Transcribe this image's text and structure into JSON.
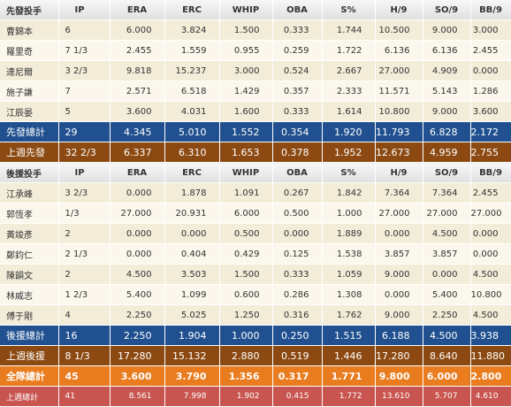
{
  "columns": [
    "IP",
    "ERA",
    "ERC",
    "WHIP",
    "OBA",
    "S%",
    "H/9",
    "SO/9",
    "BB/9"
  ],
  "sections": [
    {
      "header": "先發投手",
      "rows": [
        [
          "曹錦本",
          "6",
          "6.000",
          "3.824",
          "1.500",
          "0.333",
          "1.744",
          "10.500",
          "9.000",
          "3.000"
        ],
        [
          "羅里奇",
          "7 1/3",
          "2.455",
          "1.559",
          "0.955",
          "0.259",
          "1.722",
          "6.136",
          "6.136",
          "2.455"
        ],
        [
          "達尼爾",
          "3 2/3",
          "9.818",
          "15.237",
          "3.000",
          "0.524",
          "2.667",
          "27.000",
          "4.909",
          "0.000"
        ],
        [
          "施子謙",
          "7",
          "2.571",
          "6.518",
          "1.429",
          "0.357",
          "2.333",
          "11.571",
          "5.143",
          "1.286"
        ],
        [
          "江辰晏",
          "5",
          "3.600",
          "4.031",
          "1.600",
          "0.333",
          "1.614",
          "10.800",
          "9.000",
          "3.600"
        ]
      ],
      "summaries": [
        {
          "style": "blue",
          "cells": [
            "先發總計",
            "29",
            "4.345",
            "5.010",
            "1.552",
            "0.354",
            "1.920",
            "11.793",
            "6.828",
            "2.172"
          ]
        },
        {
          "style": "brown",
          "cells": [
            "上週先發",
            "32 2/3",
            "6.337",
            "6.310",
            "1.653",
            "0.378",
            "1.952",
            "12.673",
            "4.959",
            "2.755"
          ]
        }
      ]
    },
    {
      "header": "後援投手",
      "rows": [
        [
          "江承峰",
          "3 2/3",
          "0.000",
          "1.878",
          "1.091",
          "0.267",
          "1.842",
          "7.364",
          "7.364",
          "2.455"
        ],
        [
          "郭恆孝",
          "1/3",
          "27.000",
          "20.931",
          "6.000",
          "0.500",
          "1.000",
          "27.000",
          "27.000",
          "27.000"
        ],
        [
          "黃竣彥",
          "2",
          "0.000",
          "0.000",
          "0.500",
          "0.000",
          "1.889",
          "0.000",
          "4.500",
          "0.000"
        ],
        [
          "鄭鈞仁",
          "2 1/3",
          "0.000",
          "0.404",
          "0.429",
          "0.125",
          "1.538",
          "3.857",
          "3.857",
          "0.000"
        ],
        [
          "陳韻文",
          "2",
          "4.500",
          "3.503",
          "1.500",
          "0.333",
          "1.059",
          "9.000",
          "0.000",
          "4.500"
        ],
        [
          "林威志",
          "1 2/3",
          "5.400",
          "1.099",
          "0.600",
          "0.286",
          "1.308",
          "0.000",
          "5.400",
          "10.800"
        ],
        [
          "傅于剛",
          "4",
          "2.250",
          "5.025",
          "1.250",
          "0.316",
          "1.762",
          "9.000",
          "2.250",
          "4.500"
        ]
      ],
      "summaries": [
        {
          "style": "blue",
          "cells": [
            "後援總計",
            "16",
            "2.250",
            "1.904",
            "1.000",
            "0.250",
            "1.515",
            "6.188",
            "4.500",
            "3.938"
          ]
        },
        {
          "style": "brown",
          "cells": [
            "上週後援",
            "8 1/3",
            "17.280",
            "15.132",
            "2.880",
            "0.519",
            "1.446",
            "17.280",
            "8.640",
            "11.880"
          ]
        },
        {
          "style": "orange",
          "cells": [
            "全隊總計",
            "45",
            "3.600",
            "3.790",
            "1.356",
            "0.317",
            "1.771",
            "9.800",
            "6.000",
            "2.800"
          ]
        },
        {
          "style": "red",
          "cells": [
            "上週總計",
            "41",
            "8.561",
            "7.998",
            "1.902",
            "0.415",
            "1.772",
            "13.610",
            "5.707",
            "4.610"
          ]
        }
      ]
    }
  ]
}
